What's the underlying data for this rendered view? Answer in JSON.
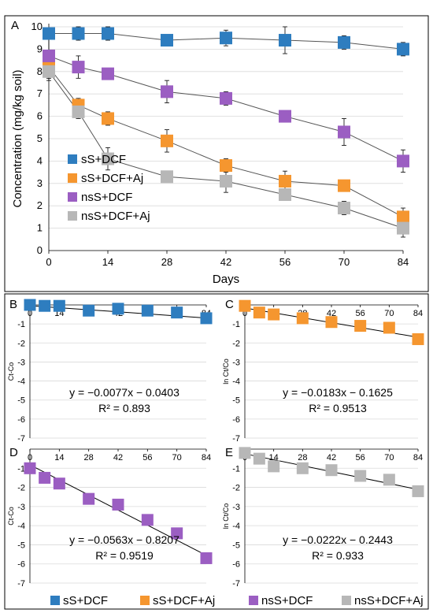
{
  "panelA": {
    "letter": "A",
    "xlabel": "Days",
    "ylabel": "Concentration (mg/kg soil)",
    "xlim": [
      0,
      84
    ],
    "ylim": [
      0,
      10
    ],
    "xticks": [
      "0",
      "14",
      "28",
      "42",
      "56",
      "70",
      "84"
    ],
    "yticks": [
      "0",
      "1",
      "2",
      "3",
      "4",
      "5",
      "6",
      "7",
      "8",
      "9",
      "10"
    ]
  },
  "chart_data": [
    {
      "type": "line",
      "panel": "A",
      "x": [
        0,
        7,
        14,
        28,
        42,
        56,
        70,
        84
      ],
      "series": [
        {
          "name": "sS+DCF",
          "color": "#2e7dbf",
          "values": [
            9.7,
            9.7,
            9.7,
            9.4,
            9.5,
            9.4,
            9.3,
            9.0
          ],
          "err": [
            0.2,
            0.3,
            0.3,
            0.2,
            0.35,
            0.6,
            0.3,
            0.3
          ]
        },
        {
          "name": "sS+DCF+Aj",
          "color": "#f5962f",
          "values": [
            8.2,
            6.5,
            5.9,
            4.9,
            3.8,
            3.1,
            2.9,
            1.5
          ],
          "err": [
            0.4,
            0.3,
            0.3,
            0.5,
            0.3,
            0.45,
            0.25,
            0.4
          ]
        },
        {
          "name": "nsS+DCF",
          "color": "#9b5ec2",
          "values": [
            8.7,
            8.2,
            7.9,
            7.1,
            6.8,
            6.0,
            5.3,
            4.0
          ],
          "err": [
            1.0,
            0.5,
            0.1,
            0.5,
            0.3,
            0.1,
            0.6,
            0.5
          ]
        },
        {
          "name": "nsS+DCF+Aj",
          "color": "#b7b7b7",
          "values": [
            8.0,
            6.2,
            4.1,
            3.3,
            3.1,
            2.5,
            1.9,
            1.0
          ],
          "err": [
            0.4,
            0.3,
            0.5,
            0.2,
            0.5,
            0.2,
            0.3,
            0.4
          ]
        }
      ]
    },
    {
      "type": "scatter",
      "panel": "B",
      "letter": "B",
      "ylabel": "Ct-Co",
      "x": [
        0,
        7,
        14,
        28,
        42,
        56,
        70,
        84
      ],
      "values": [
        0,
        -0.05,
        -0.05,
        -0.3,
        -0.2,
        -0.3,
        -0.4,
        -0.7
      ],
      "color": "#2e7dbf",
      "xticks": [
        "0",
        "14",
        "28",
        "42",
        "56",
        "70",
        "84"
      ],
      "yticks": [
        "-1",
        "-2",
        "-3",
        "-4",
        "-5",
        "-6",
        "-7"
      ],
      "ylim": [
        -7,
        0
      ],
      "trend": {
        "slope": -0.0077,
        "intercept": -0.0403
      },
      "equation": "y = −0.0077x − 0.0403",
      "r2": "R² = 0.893"
    },
    {
      "type": "scatter",
      "panel": "C",
      "letter": "C",
      "ylabel": "ln Ct/Co",
      "x": [
        0,
        7,
        14,
        28,
        42,
        56,
        70,
        84
      ],
      "values": [
        -0.05,
        -0.4,
        -0.5,
        -0.7,
        -0.9,
        -1.1,
        -1.2,
        -1.8
      ],
      "color": "#f5962f",
      "xticks": [
        "0",
        "14",
        "28",
        "42",
        "56",
        "70",
        "84"
      ],
      "yticks": [
        "-1",
        "-2",
        "-3",
        "-4",
        "-5",
        "-6",
        "-7"
      ],
      "ylim": [
        -7,
        0
      ],
      "trend": {
        "slope": -0.0183,
        "intercept": -0.1625
      },
      "equation": "y = −0.0183x − 0.1625",
      "r2": "R² = 0.9513"
    },
    {
      "type": "scatter",
      "panel": "D",
      "letter": "D",
      "ylabel": "Ct-Co",
      "x": [
        0,
        7,
        14,
        28,
        42,
        56,
        70,
        84
      ],
      "values": [
        -1.0,
        -1.5,
        -1.8,
        -2.6,
        -2.9,
        -3.7,
        -4.4,
        -5.7
      ],
      "color": "#9b5ec2",
      "xticks": [
        "0",
        "14",
        "28",
        "42",
        "56",
        "70",
        "84"
      ],
      "yticks": [
        "-1",
        "-2",
        "-3",
        "-4",
        "-5",
        "-6",
        "-7"
      ],
      "ylim": [
        -7,
        0
      ],
      "trend": {
        "slope": -0.0563,
        "intercept": -0.8207
      },
      "equation": "y = −0.0563x − 0.8207",
      "r2": "R² = 0.9519"
    },
    {
      "type": "scatter",
      "panel": "E",
      "letter": "E",
      "ylabel": "ln Ct/Co",
      "x": [
        0,
        7,
        14,
        28,
        42,
        56,
        70,
        84
      ],
      "values": [
        -0.2,
        -0.5,
        -0.9,
        -1.0,
        -1.1,
        -1.4,
        -1.6,
        -2.2
      ],
      "color": "#b7b7b7",
      "xticks": [
        "0",
        "14",
        "28",
        "42",
        "56",
        "70",
        "84"
      ],
      "yticks": [
        "-1",
        "-2",
        "-3",
        "-4",
        "-5",
        "-6",
        "-7"
      ],
      "ylim": [
        -7,
        0
      ],
      "trend": {
        "slope": -0.0222,
        "intercept": -0.2443
      },
      "equation": "y = −0.0222x − 0.2443",
      "r2": "R² = 0.933"
    }
  ],
  "bottom_legend": [
    "sS+DCF",
    "sS+DCF+Aj",
    "nsS+DCF",
    "nsS+DCF+Aj"
  ]
}
